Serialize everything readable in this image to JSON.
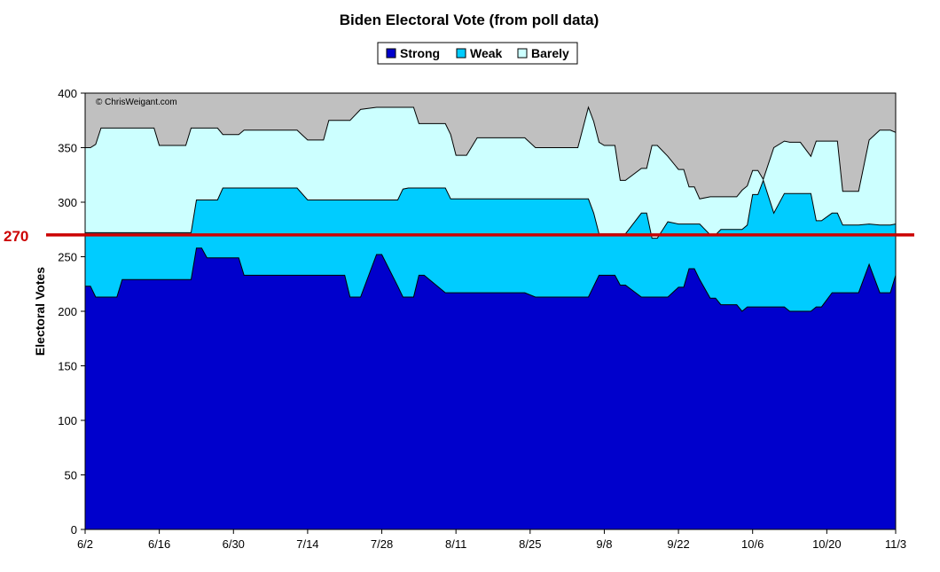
{
  "chart_data": {
    "type": "area",
    "title": "Biden Electoral Vote (from poll data)",
    "ylabel": "Electoral Votes",
    "xlabel": "",
    "copyright": "© ChrisWeigant.com",
    "ylim": [
      0,
      400
    ],
    "yticks": [
      0,
      50,
      100,
      150,
      200,
      250,
      300,
      350,
      400
    ],
    "xlim": [
      0,
      153
    ],
    "xtick_labels": [
      "6/2",
      "6/16",
      "6/30",
      "7/14",
      "7/28",
      "8/11",
      "8/25",
      "9/8",
      "9/22",
      "10/6",
      "10/20",
      "11/3"
    ],
    "xtick_days": [
      0,
      14,
      28,
      42,
      56,
      70,
      84,
      98,
      112,
      126,
      140,
      154
    ],
    "stacking": "cumulative",
    "grid": false,
    "legend_position": "top-center",
    "reference_line": {
      "value": 270,
      "label": "270",
      "color": "#cc0000"
    },
    "colors": {
      "strong": "#0000cc",
      "weak": "#00ccff",
      "barely": "#ccffff",
      "background": "#c0c0c0"
    },
    "x_days": [
      0,
      1,
      2,
      3,
      6,
      7,
      12,
      13,
      14,
      15,
      19,
      20,
      21,
      22,
      23,
      25,
      26,
      28,
      29,
      30,
      31,
      33,
      35,
      38,
      40,
      42,
      45,
      46,
      48,
      49,
      50,
      52,
      55,
      56,
      59,
      60,
      61,
      62,
      63,
      64,
      68,
      69,
      70,
      72,
      74,
      76,
      80,
      83,
      85,
      88,
      89,
      90,
      91,
      92,
      93,
      95,
      96,
      97,
      98,
      99,
      100,
      101,
      102,
      105,
      106,
      107,
      108,
      110,
      112,
      113,
      114,
      115,
      116,
      118,
      119,
      120,
      123,
      124,
      125,
      126,
      127,
      128,
      130,
      132,
      133,
      134,
      135,
      137,
      138,
      139,
      141,
      142,
      143,
      146,
      148,
      150,
      151,
      152,
      153
    ],
    "series": [
      {
        "name": "Strong",
        "color": "#0000cc",
        "values": [
          223,
          223,
          213,
          213,
          213,
          229,
          229,
          229,
          229,
          229,
          229,
          229,
          258,
          258,
          249,
          249,
          249,
          249,
          249,
          233,
          233,
          233,
          233,
          233,
          233,
          233,
          233,
          233,
          233,
          233,
          213,
          213,
          252,
          252,
          223,
          213,
          213,
          213,
          233,
          233,
          217,
          217,
          217,
          217,
          217,
          217,
          217,
          217,
          213,
          213,
          213,
          213,
          213,
          213,
          213,
          213,
          223,
          233,
          233,
          233,
          233,
          224,
          224,
          213,
          213,
          213,
          213,
          213,
          222,
          222,
          239,
          239,
          229,
          212,
          212,
          206,
          206,
          200,
          204,
          204,
          204,
          204,
          204,
          204,
          200,
          200,
          200,
          200,
          204,
          204,
          217,
          217,
          217,
          217,
          243,
          217,
          217,
          217,
          233
        ]
      },
      {
        "name": "Weak",
        "color": "#00ccff",
        "values": [
          49,
          49,
          59,
          59,
          59,
          43,
          43,
          43,
          43,
          43,
          43,
          43,
          44,
          44,
          53,
          53,
          64,
          64,
          64,
          80,
          80,
          80,
          80,
          80,
          80,
          69,
          69,
          69,
          69,
          69,
          89,
          89,
          50,
          50,
          79,
          99,
          100,
          100,
          80,
          80,
          96,
          86,
          86,
          86,
          86,
          86,
          86,
          86,
          90,
          90,
          90,
          90,
          90,
          90,
          90,
          90,
          67,
          38,
          38,
          38,
          38,
          47,
          47,
          77,
          77,
          54,
          54,
          69,
          58,
          58,
          41,
          41,
          51,
          58,
          58,
          69,
          69,
          75,
          75,
          103,
          103,
          116,
          86,
          104,
          108,
          108,
          108,
          108,
          79,
          79,
          73,
          73,
          62,
          62,
          37,
          62,
          62,
          62,
          47
        ]
      },
      {
        "name": "Barely",
        "color": "#ccffff",
        "values": [
          78,
          78,
          81,
          96,
          96,
          96,
          96,
          96,
          80,
          80,
          80,
          96,
          66,
          66,
          66,
          66,
          49,
          49,
          49,
          53,
          53,
          53,
          53,
          53,
          53,
          55,
          55,
          73,
          73,
          73,
          73,
          83,
          85,
          85,
          85,
          75,
          74,
          74,
          59,
          59,
          59,
          59,
          40,
          40,
          56,
          56,
          56,
          56,
          47,
          47,
          47,
          47,
          47,
          47,
          47,
          84,
          84,
          84,
          81,
          81,
          81,
          49,
          49,
          41,
          41,
          85,
          85,
          60,
          50,
          50,
          34,
          34,
          23,
          35,
          35,
          30,
          30,
          36,
          36,
          22,
          22,
          1,
          60,
          48,
          47,
          47,
          47,
          34,
          73,
          73,
          66,
          66,
          31,
          31,
          77,
          87,
          87,
          87,
          84
        ]
      }
    ]
  }
}
